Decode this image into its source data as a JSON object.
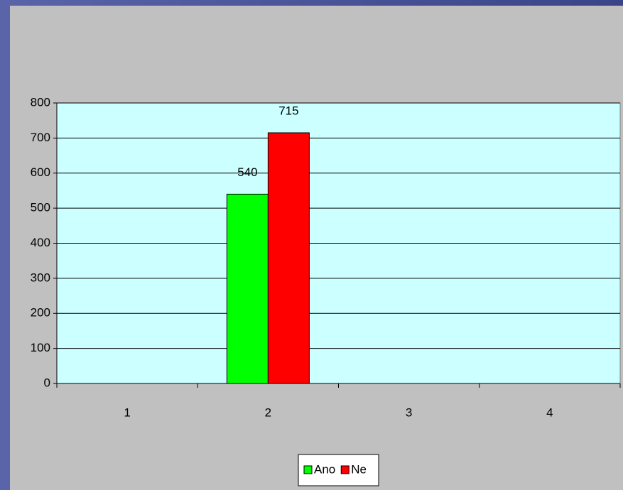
{
  "chart_data": {
    "type": "bar",
    "categories": [
      "1",
      "2",
      "3",
      "4"
    ],
    "series": [
      {
        "name": "Ano",
        "color": "#00ff00",
        "values": [
          null,
          540,
          null,
          null
        ]
      },
      {
        "name": "Ne",
        "color": "#ff0000",
        "values": [
          null,
          715,
          null,
          null
        ]
      }
    ],
    "ylim": [
      0,
      800
    ],
    "yticks": [
      0,
      100,
      200,
      300,
      400,
      500,
      600,
      700,
      800
    ],
    "grid": true,
    "legend": "bottom"
  }
}
